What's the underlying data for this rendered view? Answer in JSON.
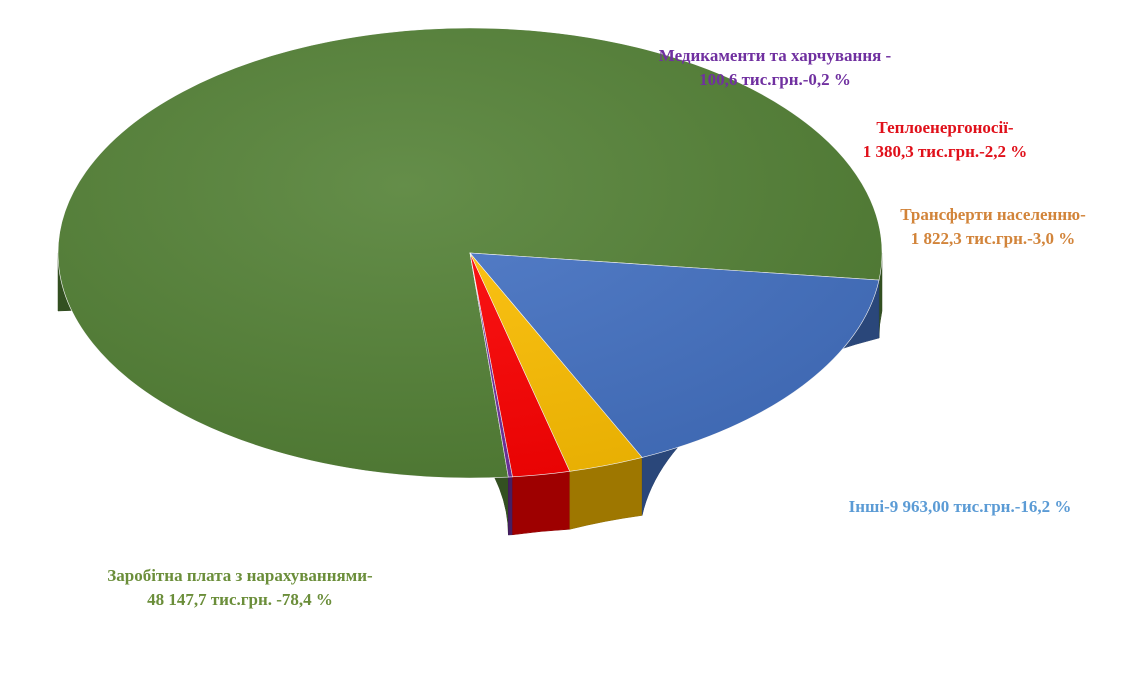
{
  "chart_data": {
    "type": "pie",
    "style": "3d",
    "title": "",
    "slices": [
      {
        "name": "Заробітна плата з нарахуваннями",
        "value": 48147.7,
        "percent": 78.4,
        "color": "#538135",
        "label_lines": [
          "Заробітна плата з нарахуваннями-",
          "48 147,7 тис.грн. -78,4 %"
        ]
      },
      {
        "name": "Медикаменти та харчування",
        "value": 100.6,
        "percent": 0.2,
        "color": "#7030A0",
        "label_lines": [
          "Медикаменти та харчування -",
          "100,6 тис.грн.-0,2 %"
        ]
      },
      {
        "name": "Теплоенергоносії",
        "value": 1380.3,
        "percent": 2.2,
        "color": "#FF0000",
        "label_lines": [
          "Теплоенергоносії-",
          "1 380,3 тис.грн.-2,2 %"
        ]
      },
      {
        "name": "Трансферти населенню",
        "value": 1822.3,
        "percent": 3.0,
        "color": "#FFC000",
        "label_lines": [
          "Трансферти населенню-",
          "1 822,3 тис.грн.-3,0 %"
        ]
      },
      {
        "name": "Інші",
        "value": 9963.0,
        "percent": 16.2,
        "color": "#4472C4",
        "label_lines": [
          "Інші-9 963,00 тис.грн.-16,2 %"
        ]
      }
    ],
    "label_colors": {
      "Заробітна плата з нарахуваннями": "#6B8E3A",
      "Медикаменти та харчування": "#7030A0",
      "Теплоенергоносії": "#E0101A",
      "Трансферти населенню": "#D2843A",
      "Інші": "#5B9BD5"
    }
  }
}
